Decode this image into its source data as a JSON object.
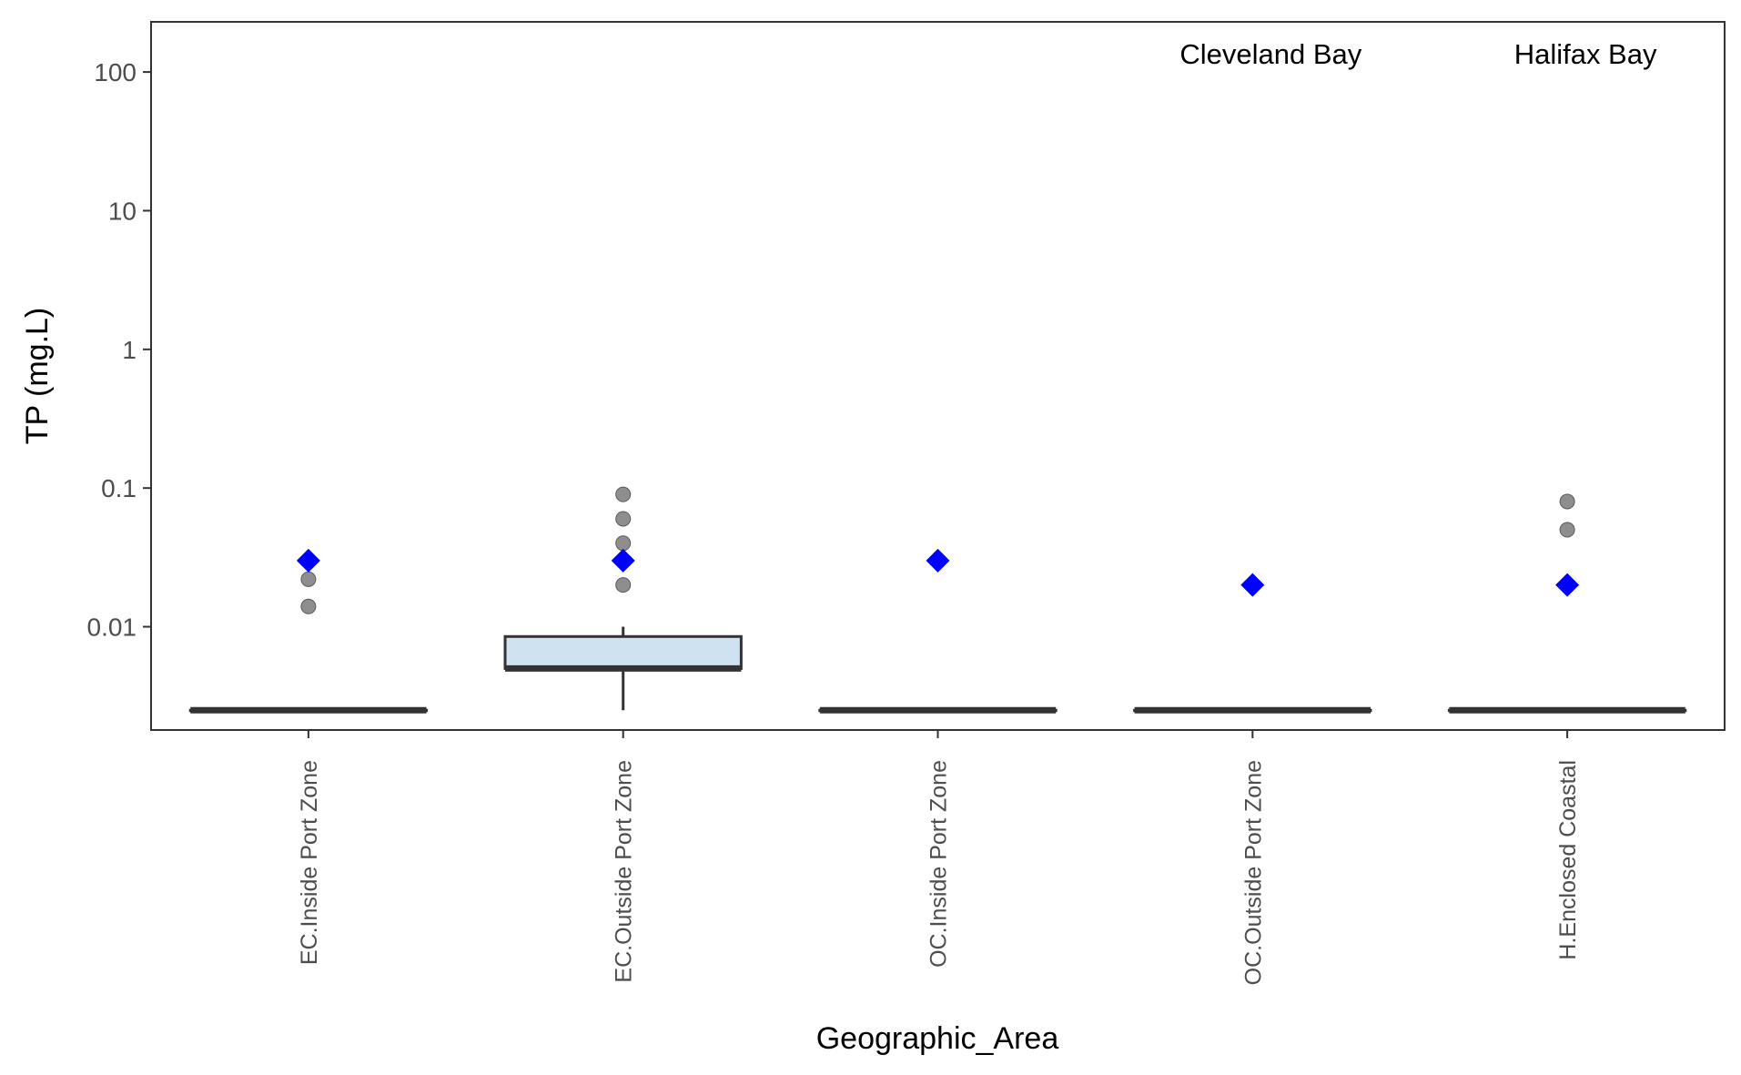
{
  "chart_data": {
    "type": "box",
    "xlabel": "Geographic_Area",
    "ylabel": "TP (mg.L)",
    "yscale": "log10",
    "ylim": [
      0.0018,
      230
    ],
    "yticks": [
      {
        "value": 0.01,
        "label": "0.01"
      },
      {
        "value": 0.1,
        "label": "0.1"
      },
      {
        "value": 1,
        "label": "1"
      },
      {
        "value": 10,
        "label": "10"
      },
      {
        "value": 100,
        "label": "100"
      }
    ],
    "categories": [
      "EC.Inside Port Zone",
      "EC.Outside Port Zone",
      "OC.Inside Port Zone",
      "OC.Outside Port Zone",
      "H.Enclosed Coastal"
    ],
    "boxes": [
      {
        "q1": 0.0025,
        "median": 0.0025,
        "q3": 0.0025,
        "whisker_low": 0.0025,
        "whisker_high": 0.0025
      },
      {
        "q1": 0.005,
        "median": 0.005,
        "q3": 0.0085,
        "whisker_low": 0.0025,
        "whisker_high": 0.01
      },
      {
        "q1": 0.0025,
        "median": 0.0025,
        "q3": 0.0025,
        "whisker_low": 0.0025,
        "whisker_high": 0.0025
      },
      {
        "q1": 0.0025,
        "median": 0.0025,
        "q3": 0.0025,
        "whisker_low": 0.0025,
        "whisker_high": 0.0025
      },
      {
        "q1": 0.0025,
        "median": 0.0025,
        "q3": 0.0025,
        "whisker_low": 0.0025,
        "whisker_high": 0.0025
      }
    ],
    "outliers": [
      [
        0.014,
        0.022,
        0.03
      ],
      [
        0.02,
        0.03,
        0.04,
        0.06,
        0.09
      ],
      [],
      [],
      [
        0.05,
        0.08
      ]
    ],
    "reference_points": [
      0.03,
      0.03,
      0.03,
      0.02,
      0.02
    ],
    "annotations": [
      {
        "text": "Cleveland Bay",
        "category_index": 3
      },
      {
        "text": "Halifax Bay",
        "category_index": 4
      }
    ],
    "grid": false,
    "colors": {
      "box_fill": "#cfe2f0",
      "box_line": "#333333",
      "outlier": "#7a7a7a",
      "reference_point": "#0000ff",
      "panel_border": "#333333",
      "tick_text": "#4d4d4d"
    }
  }
}
